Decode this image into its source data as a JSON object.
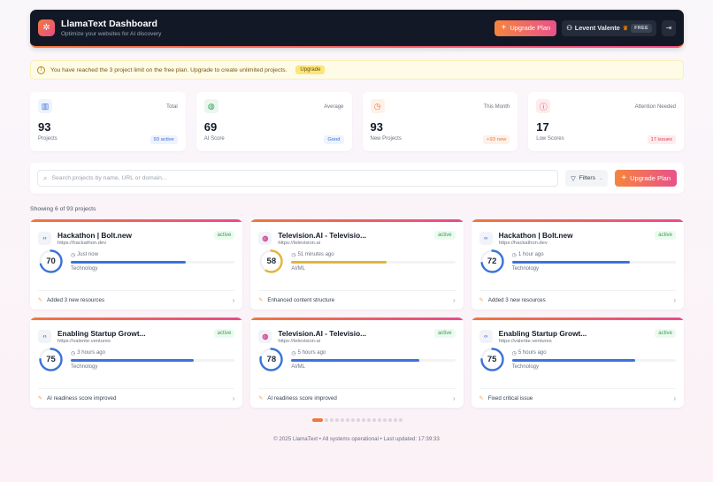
{
  "header": {
    "title": "LlamaText Dashboard",
    "subtitle": "Optimize your websites for AI discovery",
    "logo_icon": "sparkle-icon",
    "upgrade_label": "Upgrade Plan",
    "user_name": "Levent Valente",
    "plan_badge": "FREE",
    "logout_icon": "logout-icon"
  },
  "alert": {
    "message": "You have reached the 3 project limit on the free plan. Upgrade to create unlimited projects.",
    "button_label": "Upgrade"
  },
  "stats": [
    {
      "caption": "Total",
      "value": "93",
      "label": "Projects",
      "badge": "93 active",
      "icon": "bar-chart-icon",
      "color": "#3b6fd6",
      "bg": "#eef3fd",
      "badge_bg": "#eef3fd",
      "badge_color": "#3b6fd6"
    },
    {
      "caption": "Average",
      "value": "69",
      "label": "AI Score",
      "badge": "Good",
      "icon": "globe-icon",
      "color": "#2e9d4f",
      "bg": "#eaf7ee",
      "badge_bg": "#eef3fd",
      "badge_color": "#3b6fd6"
    },
    {
      "caption": "This Month",
      "value": "93",
      "label": "New Projects",
      "badge": "+93 new",
      "icon": "clock-icon",
      "color": "#ea7a3a",
      "bg": "#fdf1e8",
      "badge_bg": "#fdf1e8",
      "badge_color": "#ea7a3a"
    },
    {
      "caption": "Attention Needed",
      "value": "17",
      "label": "Low Scores",
      "badge": "17 issues",
      "icon": "alert-circle-icon",
      "color": "#dc3a4a",
      "bg": "#fdecee",
      "badge_bg": "#fdecee",
      "badge_color": "#dc3a4a"
    }
  ],
  "search": {
    "placeholder": "Search projects by name, URL or domain...",
    "value": "",
    "filters_label": "Filters",
    "upgrade_label": "Upgrade Plan"
  },
  "showing_text": "Showing 6 of 93 projects",
  "projects": [
    {
      "title": "Hackathon | Bolt.new",
      "url": "https://hackathon.dev",
      "status": "active",
      "score": 70,
      "time": "Just now",
      "category": "Technology",
      "activity": "Added 3 new resources",
      "icon": "code-icon",
      "bar_color": "#3b73d9"
    },
    {
      "title": "Television.AI - Televisio...",
      "url": "https://television.ai",
      "status": "active",
      "score": 58,
      "time": "51 minutes ago",
      "category": "AI/ML",
      "activity": "Enhanced content structure",
      "icon": "globe-icon",
      "bar_color": "#e2b43a"
    },
    {
      "title": "Hackathon | Bolt.new",
      "url": "https://hackathon.dev",
      "status": "active",
      "score": 72,
      "time": "1 hour ago",
      "category": "Technology",
      "activity": "Added 3 new resources",
      "icon": "code-icon",
      "bar_color": "#3b73d9"
    },
    {
      "title": "Enabling Startup Growt...",
      "url": "https://valente.ventures",
      "status": "active",
      "score": 75,
      "time": "3 hours ago",
      "category": "Technology",
      "activity": "AI readiness score improved",
      "icon": "code-icon",
      "bar_color": "#3b73d9"
    },
    {
      "title": "Television.AI - Televisio...",
      "url": "https://television.ai",
      "status": "active",
      "score": 78,
      "time": "5 hours ago",
      "category": "AI/ML",
      "activity": "AI readiness score improved",
      "icon": "globe-icon",
      "bar_color": "#3b73d9"
    },
    {
      "title": "Enabling Startup Growt...",
      "url": "https://valente.ventures",
      "status": "active",
      "score": 75,
      "time": "5 hours ago",
      "category": "Technology",
      "activity": "Fixed critical issue",
      "icon": "code-icon",
      "bar_color": "#3b73d9"
    }
  ],
  "pagination": {
    "total_pages": 16,
    "current_page": 1
  },
  "footer": "© 2025 LlamaText • All systems operational • Last updated: 17:39:33"
}
